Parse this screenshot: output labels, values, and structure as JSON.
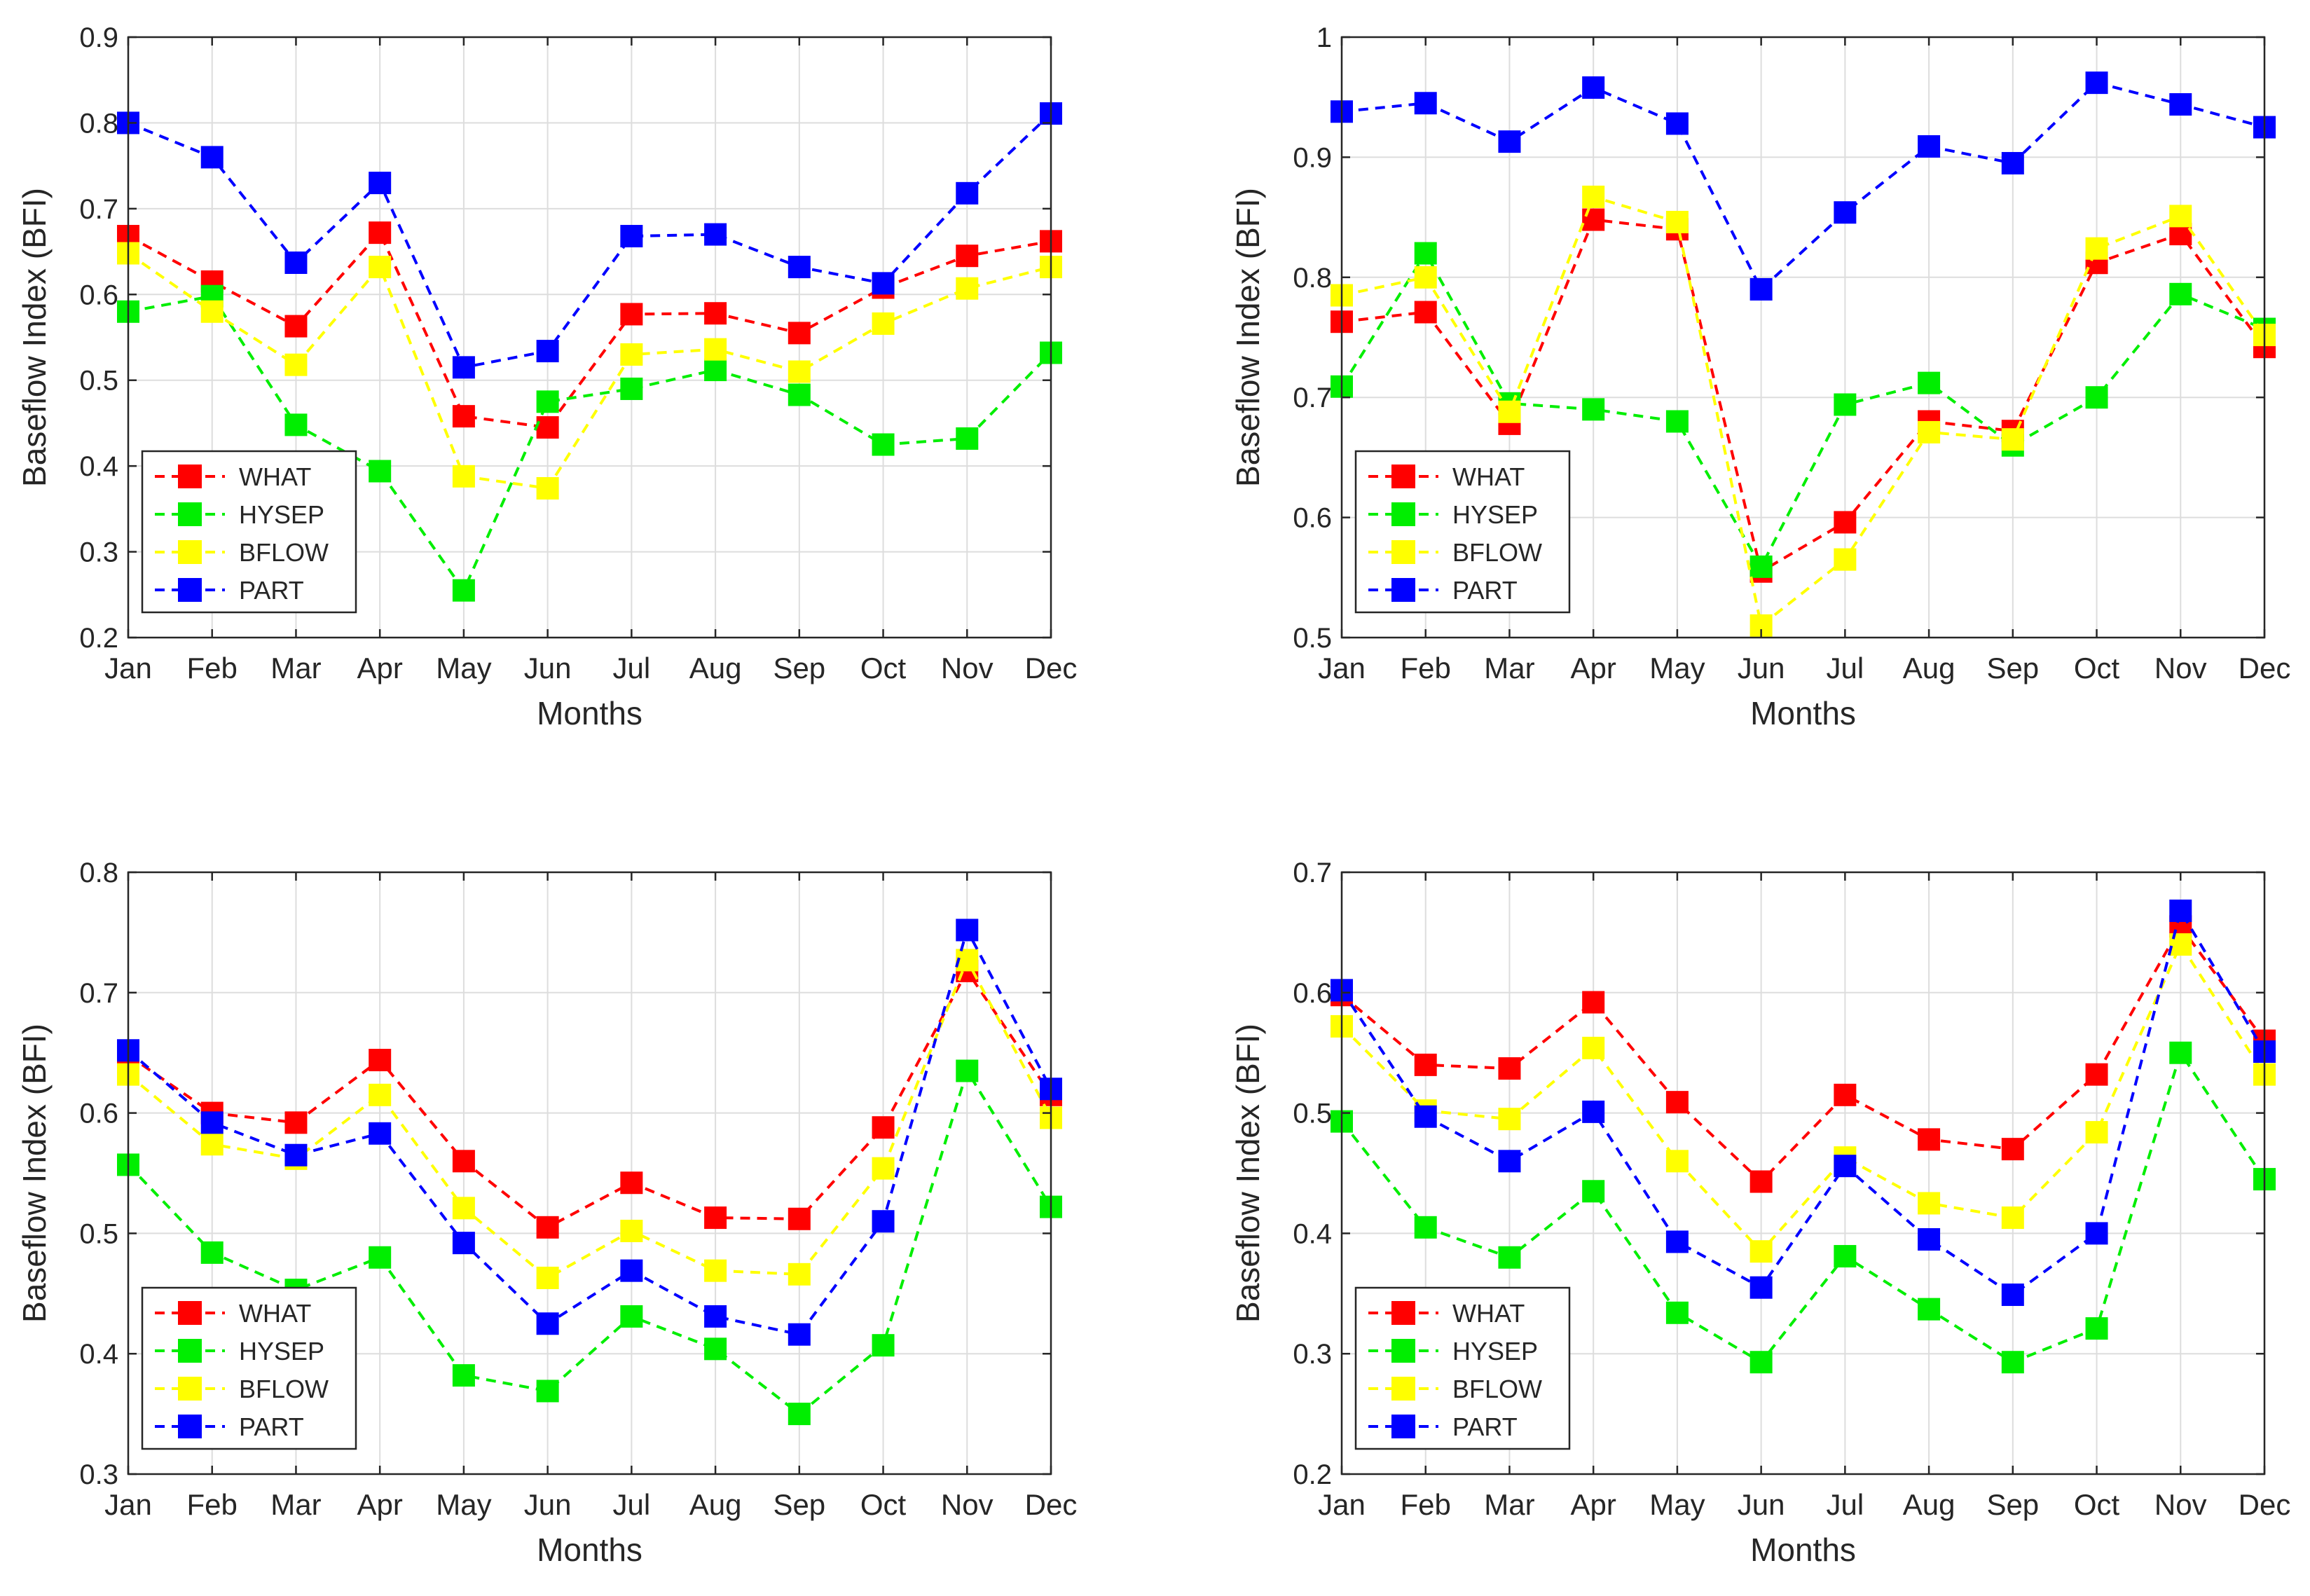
{
  "colors": {
    "WHAT": "#ff0000",
    "HYSEP": "#00ee00",
    "BFLOW": "#ffff00",
    "PART": "#0000ff",
    "grid": "#dddddd",
    "axis": "#262626"
  },
  "chart_data": [
    {
      "type": "line",
      "panel": "top-left",
      "xlabel": "Months",
      "ylabel": "Baseflow Index (BFI)",
      "categories": [
        "Jan",
        "Feb",
        "Mar",
        "Apr",
        "May",
        "Jun",
        "Jul",
        "Aug",
        "Sep",
        "Oct",
        "Nov",
        "Dec"
      ],
      "ylim": [
        0.2,
        0.9
      ],
      "yticks": [
        0.2,
        0.3,
        0.4,
        0.5,
        0.6,
        0.7,
        0.8,
        0.9
      ],
      "ytick_labels": [
        "0.2",
        "0.3",
        "0.4",
        "0.5",
        "0.6",
        "0.7",
        "0.8",
        "0.9"
      ],
      "grid": true,
      "legend": "bottom-left",
      "series": [
        {
          "name": "WHAT",
          "values": [
            0.668,
            0.615,
            0.563,
            0.672,
            0.458,
            0.445,
            0.577,
            0.578,
            0.555,
            0.608,
            0.645,
            0.662
          ]
        },
        {
          "name": "HYSEP",
          "values": [
            0.58,
            0.598,
            0.448,
            0.394,
            0.255,
            0.475,
            0.49,
            0.512,
            0.483,
            0.425,
            0.432,
            0.532
          ]
        },
        {
          "name": "BFLOW",
          "values": [
            0.648,
            0.58,
            0.518,
            0.632,
            0.388,
            0.374,
            0.53,
            0.536,
            0.51,
            0.566,
            0.607,
            0.632
          ]
        },
        {
          "name": "PART",
          "values": [
            0.8,
            0.76,
            0.637,
            0.73,
            0.515,
            0.534,
            0.668,
            0.67,
            0.632,
            0.613,
            0.718,
            0.811
          ]
        }
      ]
    },
    {
      "type": "line",
      "panel": "top-right",
      "xlabel": "Months",
      "ylabel": "Baseflow Index (BFI)",
      "categories": [
        "Jan",
        "Feb",
        "Mar",
        "Apr",
        "May",
        "Jun",
        "Jul",
        "Aug",
        "Sep",
        "Oct",
        "Nov",
        "Dec"
      ],
      "ylim": [
        0.5,
        1.0
      ],
      "yticks": [
        0.5,
        0.6,
        0.7,
        0.8,
        0.9,
        1.0
      ],
      "ytick_labels": [
        "0.5",
        "0.6",
        "0.7",
        "0.8",
        "0.9",
        "1"
      ],
      "grid": true,
      "legend": "bottom-left",
      "series": [
        {
          "name": "WHAT",
          "values": [
            0.763,
            0.771,
            0.678,
            0.848,
            0.84,
            0.555,
            0.596,
            0.68,
            0.672,
            0.812,
            0.836,
            0.742
          ]
        },
        {
          "name": "HYSEP",
          "values": [
            0.709,
            0.82,
            0.695,
            0.69,
            0.68,
            0.559,
            0.694,
            0.712,
            0.66,
            0.7,
            0.786,
            0.757
          ]
        },
        {
          "name": "BFLOW",
          "values": [
            0.785,
            0.8,
            0.688,
            0.867,
            0.846,
            0.51,
            0.565,
            0.671,
            0.665,
            0.824,
            0.851,
            0.752
          ]
        },
        {
          "name": "PART",
          "values": [
            0.938,
            0.945,
            0.913,
            0.958,
            0.928,
            0.79,
            0.854,
            0.909,
            0.895,
            0.962,
            0.944,
            0.925
          ]
        }
      ]
    },
    {
      "type": "line",
      "panel": "bottom-left",
      "xlabel": "Months",
      "ylabel": "Baseflow Index (BFI)",
      "categories": [
        "Jan",
        "Feb",
        "Mar",
        "Apr",
        "May",
        "Jun",
        "Jul",
        "Aug",
        "Sep",
        "Oct",
        "Nov",
        "Dec"
      ],
      "ylim": [
        0.3,
        0.8
      ],
      "yticks": [
        0.3,
        0.4,
        0.5,
        0.6,
        0.7,
        0.8
      ],
      "ytick_labels": [
        "0.3",
        "0.4",
        "0.5",
        "0.6",
        "0.7",
        "0.8"
      ],
      "grid": true,
      "legend": "bottom-left",
      "series": [
        {
          "name": "WHAT",
          "values": [
            0.648,
            0.6,
            0.592,
            0.644,
            0.56,
            0.505,
            0.542,
            0.513,
            0.512,
            0.588,
            0.718,
            0.615
          ]
        },
        {
          "name": "HYSEP",
          "values": [
            0.557,
            0.484,
            0.453,
            0.48,
            0.382,
            0.369,
            0.431,
            0.404,
            0.35,
            0.407,
            0.635,
            0.522
          ]
        },
        {
          "name": "BFLOW",
          "values": [
            0.632,
            0.574,
            0.562,
            0.615,
            0.521,
            0.463,
            0.502,
            0.469,
            0.466,
            0.554,
            0.727,
            0.596
          ]
        },
        {
          "name": "PART",
          "values": [
            0.652,
            0.592,
            0.565,
            0.583,
            0.492,
            0.425,
            0.469,
            0.431,
            0.416,
            0.51,
            0.752,
            0.62
          ]
        }
      ]
    },
    {
      "type": "line",
      "panel": "bottom-right",
      "xlabel": "Months",
      "ylabel": "Baseflow Index (BFI)",
      "categories": [
        "Jan",
        "Feb",
        "Mar",
        "Apr",
        "May",
        "Jun",
        "Jul",
        "Aug",
        "Sep",
        "Oct",
        "Nov",
        "Dec"
      ],
      "ylim": [
        0.2,
        0.7
      ],
      "yticks": [
        0.2,
        0.3,
        0.4,
        0.5,
        0.6,
        0.7
      ],
      "ytick_labels": [
        "0.2",
        "0.3",
        "0.4",
        "0.5",
        "0.6",
        "0.7"
      ],
      "grid": true,
      "legend": "bottom-left",
      "series": [
        {
          "name": "WHAT",
          "values": [
            0.598,
            0.54,
            0.537,
            0.592,
            0.509,
            0.443,
            0.515,
            0.478,
            0.47,
            0.532,
            0.655,
            0.56
          ]
        },
        {
          "name": "HYSEP",
          "values": [
            0.493,
            0.405,
            0.38,
            0.435,
            0.334,
            0.293,
            0.381,
            0.337,
            0.293,
            0.321,
            0.55,
            0.445
          ]
        },
        {
          "name": "BFLOW",
          "values": [
            0.572,
            0.502,
            0.495,
            0.554,
            0.46,
            0.385,
            0.463,
            0.425,
            0.413,
            0.484,
            0.64,
            0.532
          ]
        },
        {
          "name": "PART",
          "values": [
            0.602,
            0.497,
            0.46,
            0.501,
            0.393,
            0.355,
            0.456,
            0.395,
            0.349,
            0.4,
            0.668,
            0.551
          ]
        }
      ]
    }
  ]
}
